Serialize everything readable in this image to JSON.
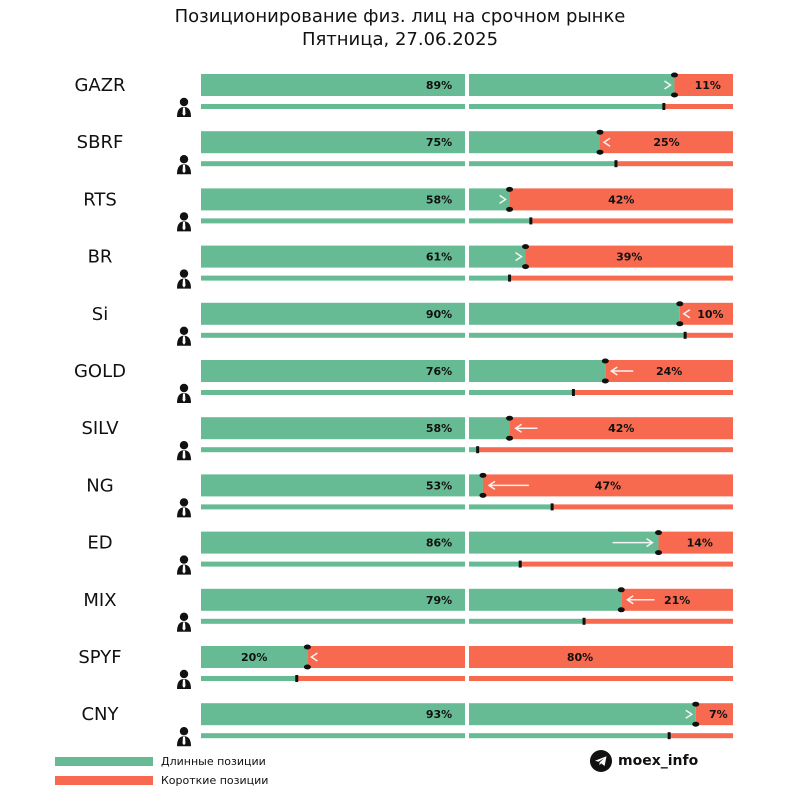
{
  "header": {
    "title": "Позиционирование физ. лиц на срочном рынке",
    "subtitle": "Пятница, 27.06.2025"
  },
  "legend": [
    {
      "label": "Длинные позиции",
      "color": "#66bb94"
    },
    {
      "label": "Короткие позиции",
      "color": "#f76a4f"
    }
  ],
  "brand": {
    "label": "moex_info",
    "icon": "telegram-icon"
  },
  "colors": {
    "long": "#66bb94",
    "short": "#f76a4f"
  },
  "chart_data": {
    "type": "bar",
    "categories": [
      "GAZR",
      "SBRF",
      "RTS",
      "BR",
      "Si",
      "GOLD",
      "SILV",
      "NG",
      "ED",
      "MIX",
      "SPYF",
      "CNY"
    ],
    "series": [
      {
        "name": "Длинные позиции",
        "values": [
          89,
          75,
          58,
          61,
          90,
          76,
          58,
          53,
          86,
          79,
          20,
          93
        ]
      },
      {
        "name": "Короткие позиции",
        "values": [
          11,
          25,
          42,
          39,
          10,
          24,
          42,
          47,
          14,
          21,
          80,
          7
        ]
      }
    ],
    "value_labels": [
      [
        "89%",
        "11%"
      ],
      [
        "75%",
        "25%"
      ],
      [
        "58%",
        "42%"
      ],
      [
        "61%",
        "39%"
      ],
      [
        "90%",
        "10%"
      ],
      [
        "76%",
        "24%"
      ],
      [
        "58%",
        "42%"
      ],
      [
        "53%",
        "47%"
      ],
      [
        "86%",
        "14%"
      ],
      [
        "79%",
        "21%"
      ],
      [
        "20%",
        "80%"
      ],
      [
        "93%",
        "7%"
      ]
    ],
    "previous_long_percent": [
      87,
      78,
      62,
      58,
      91,
      70,
      52,
      66,
      60,
      72,
      18,
      88
    ],
    "change_direction": [
      "right",
      "left",
      "right",
      "right",
      "left",
      "left",
      "left",
      "left",
      "right",
      "left",
      "left",
      "right"
    ],
    "xlim": [
      0,
      100
    ]
  }
}
